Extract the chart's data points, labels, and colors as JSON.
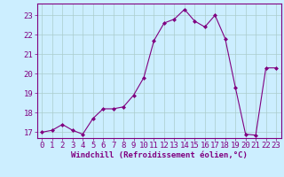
{
  "x": [
    0,
    1,
    2,
    3,
    4,
    5,
    6,
    7,
    8,
    9,
    10,
    11,
    12,
    13,
    14,
    15,
    16,
    17,
    18,
    19,
    20,
    21,
    22,
    23
  ],
  "y": [
    17.0,
    17.1,
    17.4,
    17.1,
    16.9,
    17.7,
    18.2,
    18.2,
    18.3,
    18.9,
    19.8,
    21.7,
    22.6,
    22.8,
    23.3,
    22.7,
    22.4,
    23.0,
    21.8,
    19.3,
    16.9,
    16.85,
    20.3,
    20.3
  ],
  "line_color": "#800080",
  "marker": "D",
  "marker_size": 2,
  "bg_color": "#cceeff",
  "grid_color": "#aacccc",
  "xlabel": "Windchill (Refroidissement éolien,°C)",
  "ylabel": "",
  "ylim": [
    16.7,
    23.6
  ],
  "xlim": [
    -0.5,
    23.5
  ],
  "yticks": [
    17,
    18,
    19,
    20,
    21,
    22,
    23
  ],
  "xticks": [
    0,
    1,
    2,
    3,
    4,
    5,
    6,
    7,
    8,
    9,
    10,
    11,
    12,
    13,
    14,
    15,
    16,
    17,
    18,
    19,
    20,
    21,
    22,
    23
  ],
  "spine_color": "#800080",
  "tick_color": "#800080",
  "label_color": "#800080",
  "font_size": 6.5
}
